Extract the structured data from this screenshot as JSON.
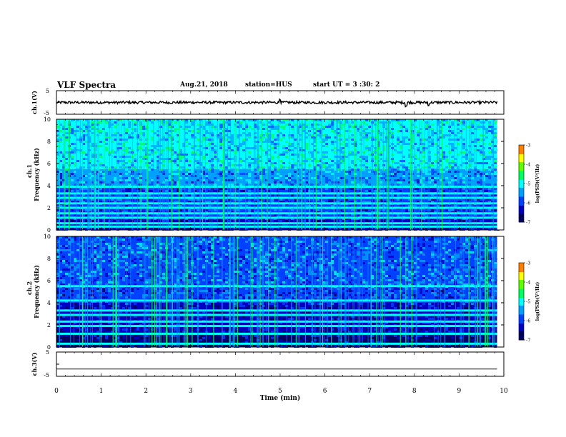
{
  "header": {
    "title": "VLF Spectra",
    "date": "Aug.21, 2018",
    "station": "station=HUS",
    "start": "start UT =  3 :30: 2"
  },
  "colors": {
    "background": "#ffffff",
    "axis": "#000000",
    "colormap": [
      "#000060",
      "#0000c0",
      "#0040ff",
      "#00a0ff",
      "#00ffff",
      "#00ff60",
      "#60ff00",
      "#ffff00",
      "#ff8000",
      "#ff0000",
      "#ffffff"
    ]
  },
  "chart_data": [
    {
      "type": "line",
      "panel": "waveform-1",
      "ylabel": "ch.1(V)",
      "ylim": [
        -5,
        5
      ],
      "yticks": [
        "5",
        "-5"
      ],
      "xlim": [
        0,
        10
      ],
      "baseline": 0,
      "description_values": {
        "noise_amplitude_v": 0.4,
        "spikes_at_min": [
          5.0,
          7.82,
          8.32
        ]
      }
    },
    {
      "type": "heatmap",
      "panel": "spectrogram-1",
      "ylabel_top": "ch.1",
      "ylabel": "Frequency (kHz)",
      "xlim": [
        0,
        9.85
      ],
      "ylim": [
        0,
        10
      ],
      "yticks": [
        "0",
        "2",
        "4",
        "6",
        "8",
        "10"
      ],
      "colorbar": {
        "label": "log(PSD)(V²/Hz)",
        "range": [
          -7,
          -3
        ],
        "ticks": [
          "-3",
          "-4",
          "-5",
          "-6",
          "-7"
        ]
      },
      "bands_khz": [
        0.3,
        0.6,
        1.1,
        1.5,
        2.0,
        2.4,
        2.9,
        3.3,
        3.9
      ],
      "broadband_level_log_psd": {
        "0-1 kHz": -6.4,
        "1-4 kHz": -6.0,
        "4-5.5 kHz": -5.6,
        "5.5-10 kHz": -5.2
      }
    },
    {
      "type": "heatmap",
      "panel": "spectrogram-2",
      "ylabel_top": "ch.2",
      "ylabel": "Frequency (kHz)",
      "xlim": [
        0,
        9.85
      ],
      "ylim": [
        0,
        10
      ],
      "yticks": [
        "0",
        "2",
        "4",
        "6",
        "8",
        "10"
      ],
      "colorbar": {
        "label": "log(PSD)(V²/Hz)",
        "range": [
          -7,
          -3
        ],
        "ticks": [
          "-3",
          "-4",
          "-5",
          "-6",
          "-7"
        ]
      },
      "bands_khz": [
        0.3,
        1.2,
        1.9,
        2.3,
        2.9,
        3.3,
        4.2,
        5.5
      ],
      "broadband_level_log_psd": {
        "0-1 kHz": -6.6,
        "1-4 kHz": -6.4,
        "4-5.5 kHz": -6.0,
        "5.5-10 kHz": -5.7
      }
    },
    {
      "type": "line",
      "panel": "waveform-3",
      "ylabel": "ch.3(V)",
      "ylim": [
        -5,
        5
      ],
      "yticks": [
        "5",
        "-5"
      ],
      "xlim": [
        0,
        10
      ],
      "baseline": -2.0
    }
  ],
  "xaxis": {
    "label": "Time (min)",
    "ticks": [
      "0",
      "1",
      "2",
      "3",
      "4",
      "5",
      "6",
      "7",
      "8",
      "9",
      "10"
    ]
  }
}
